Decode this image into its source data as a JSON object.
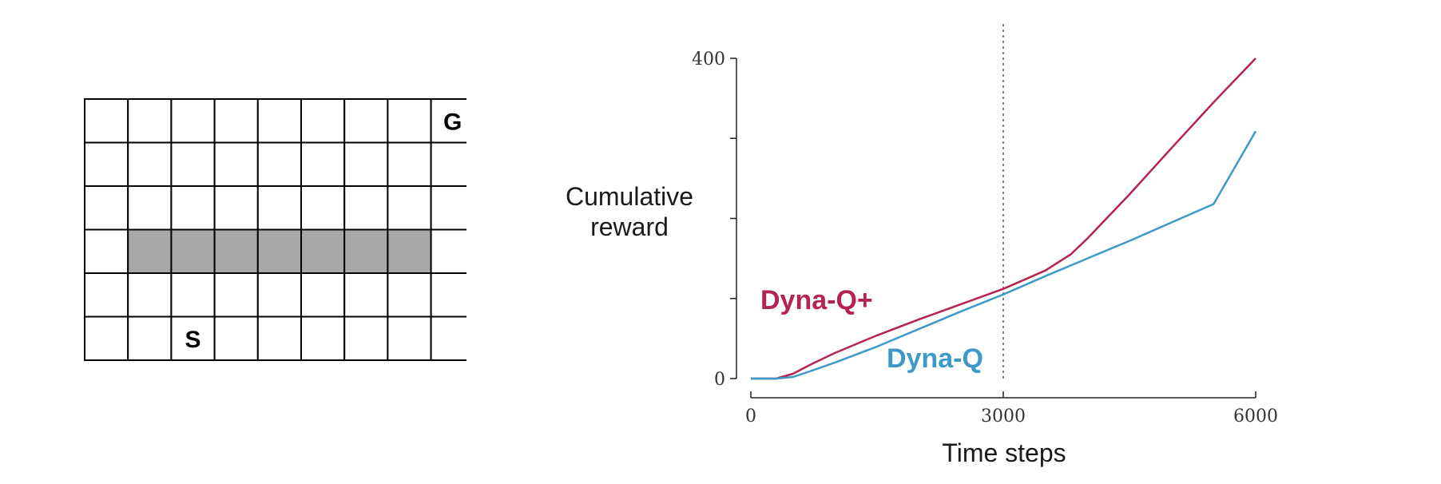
{
  "gridworld": {
    "cols": 9,
    "rows": 6,
    "blocked_row": 3,
    "blocked_cols": [
      1,
      2,
      3,
      4,
      5,
      6,
      7
    ],
    "blocked_color": "#a8a8a8",
    "goal": {
      "label": "G",
      "row": 0,
      "col": 8
    },
    "start": {
      "label": "S",
      "row": 5,
      "col": 2
    }
  },
  "chart_data": {
    "type": "line",
    "xlabel": "Time steps",
    "ylabel": [
      "Cumulative",
      "reward"
    ],
    "xlim": [
      0,
      6000
    ],
    "ylim": [
      0,
      400
    ],
    "xticks": [
      "0",
      "3000",
      "6000"
    ],
    "yticks_labeled": [
      "0",
      "400"
    ],
    "yticks_minor": [
      100,
      200,
      300
    ],
    "vline_x": 3000,
    "grid": false,
    "series": [
      {
        "name": "Dyna-Q+",
        "color": "#b5234f",
        "x": [
          0,
          300,
          500,
          700,
          1000,
          1500,
          2000,
          2500,
          3000,
          3500,
          3800,
          4000,
          4500,
          5000,
          5500,
          6000
        ],
        "y": [
          0,
          0,
          6,
          17,
          32,
          54,
          74,
          93,
          112,
          135,
          155,
          175,
          230,
          288,
          345,
          400
        ]
      },
      {
        "name": "Dyna-Q",
        "color": "#3d9ac8",
        "x": [
          0,
          300,
          500,
          700,
          1000,
          1500,
          2000,
          2500,
          3000,
          3500,
          4000,
          4500,
          5000,
          5500,
          6000
        ],
        "y": [
          0,
          0,
          2,
          9,
          20,
          40,
          62,
          84,
          105,
          128,
          150,
          172,
          195,
          218,
          309
        ]
      }
    ]
  }
}
